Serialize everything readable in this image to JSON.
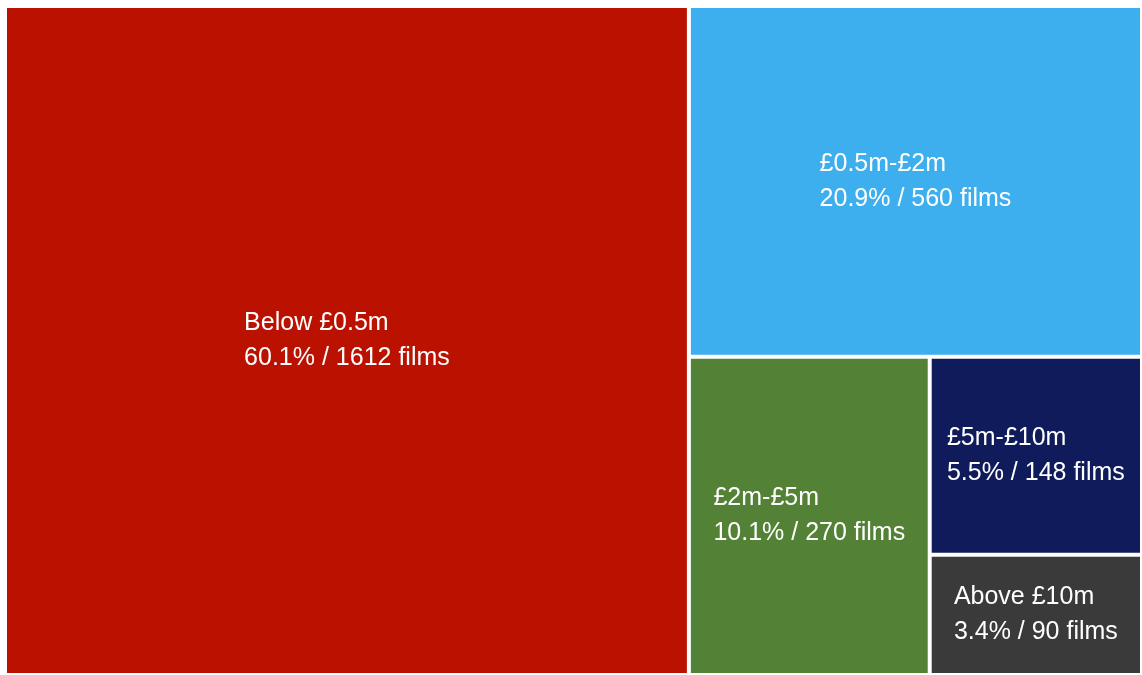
{
  "chart_data": {
    "type": "other",
    "categories": [
      "Below £0.5m",
      "£0.5m-£2m",
      "£2m-£5m",
      "£5m-£10m",
      "Above £10m"
    ],
    "values": [
      1612,
      560,
      270,
      148,
      90
    ],
    "value_labels": [
      "60.1% / 1612 films",
      "20.9% / 560 films",
      "10.1% / 270 films",
      "5.5% / 148 films",
      "3.4% / 90 films"
    ],
    "colors": [
      "#bb1100",
      "#3daeee",
      "#538135",
      "#0f1b5a",
      "#3a3a3a"
    ]
  }
}
